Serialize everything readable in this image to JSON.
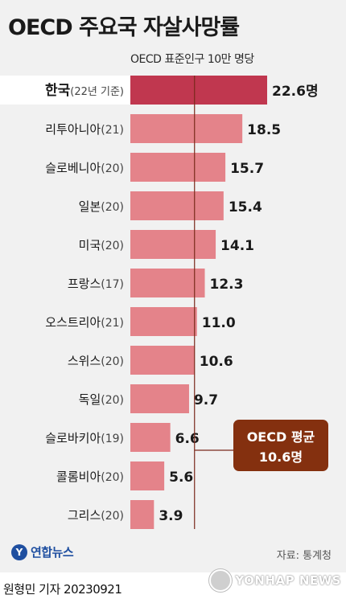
{
  "header": {
    "title": "OECD 주요국 자살사망률",
    "subtitle": "OECD 표준인구 10만 명당"
  },
  "chart_data": {
    "type": "bar",
    "orientation": "horizontal",
    "categories": [
      "한국(22년 기준)",
      "리투아니아(21)",
      "슬로베니아(20)",
      "일본(20)",
      "미국(20)",
      "프랑스(17)",
      "오스트리아(21)",
      "스위스(20)",
      "독일(20)",
      "슬로바키아(19)",
      "콜롬비아(20)",
      "그리스(20)"
    ],
    "category_main": [
      "한국",
      "리투아니아",
      "슬로베니아",
      "일본",
      "미국",
      "프랑스",
      "오스트리아",
      "스위스",
      "독일",
      "슬로바키아",
      "콜롬비아",
      "그리스"
    ],
    "category_suffix": [
      "(22년 기준)",
      "(21)",
      "(20)",
      "(20)",
      "(20)",
      "(17)",
      "(21)",
      "(20)",
      "(20)",
      "(19)",
      "(20)",
      "(20)"
    ],
    "values": [
      22.6,
      18.5,
      15.7,
      15.4,
      14.1,
      12.3,
      11.0,
      10.6,
      9.7,
      6.6,
      5.6,
      3.9
    ],
    "value_labels": [
      "22.6명",
      "18.5",
      "15.7",
      "15.4",
      "14.1",
      "12.3",
      "11.0",
      "10.6",
      "9.7",
      "6.6",
      "5.6",
      "3.9"
    ],
    "average": {
      "value": 10.6,
      "label_line1": "OECD 평균",
      "label_line2": "10.6명"
    },
    "xlim": [
      0,
      22.6
    ],
    "highlight_color": "#c0374f",
    "bar_color": "#e4838a",
    "average_line_color": "#7a2a1c",
    "callout_color": "#84300f"
  },
  "footer": {
    "source": "자료: 통계청",
    "logo_text": "연합뉴스",
    "byline": "원형민 기자  20230921",
    "watermark": "YONHAP NEWS"
  }
}
